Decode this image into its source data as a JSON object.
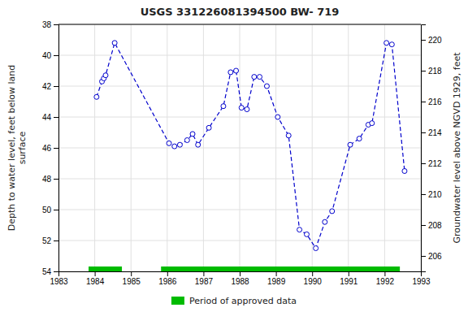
{
  "chart_data": {
    "type": "line",
    "title": "USGS 331226081394500 BW- 719",
    "ylabel": "Depth to water level, feet below land\nsurface",
    "y2label": "Groundwater level above NGVD 1929, feet",
    "x": [
      1984.05,
      1984.2,
      1984.25,
      1984.3,
      1984.55,
      1986.05,
      1986.2,
      1986.35,
      1986.55,
      1986.7,
      1986.85,
      1987.15,
      1987.55,
      1987.75,
      1987.9,
      1988.05,
      1988.2,
      1988.4,
      1988.55,
      1988.75,
      1989.05,
      1989.35,
      1989.65,
      1989.85,
      1990.1,
      1990.35,
      1990.55,
      1991.05,
      1991.3,
      1991.55,
      1991.65,
      1992.05,
      1992.2,
      1992.55
    ],
    "series": [
      {
        "color": "#0000CC",
        "marker": "circle",
        "line_style": "dashed",
        "values": [
          42.7,
          41.7,
          41.5,
          41.3,
          39.2,
          45.7,
          45.9,
          45.8,
          45.5,
          45.1,
          45.8,
          44.7,
          43.3,
          41.1,
          41.0,
          43.4,
          43.5,
          41.4,
          41.4,
          42.0,
          44.0,
          45.2,
          51.3,
          51.6,
          52.5,
          50.8,
          50.1,
          45.8,
          45.4,
          44.5,
          44.4,
          39.2,
          39.3,
          47.5
        ]
      }
    ],
    "spans": [
      {
        "name": "Period of approved data",
        "color": "#00BB00",
        "ranges": [
          [
            1983.83,
            1984.75
          ],
          [
            1985.83,
            1992.42
          ]
        ]
      }
    ],
    "xlim": [
      1983,
      1993
    ],
    "xticks": [
      1983,
      1984,
      1985,
      1986,
      1987,
      1988,
      1989,
      1990,
      1991,
      1992,
      1993
    ],
    "ylim": [
      54,
      38
    ],
    "yticks": [
      38,
      40,
      42,
      44,
      46,
      48,
      50,
      52,
      54
    ],
    "y2lim": [
      205,
      221
    ],
    "y2ticks": [
      220,
      218,
      216,
      214,
      212,
      210,
      208,
      206
    ],
    "grid": true,
    "legend": "bottom"
  }
}
